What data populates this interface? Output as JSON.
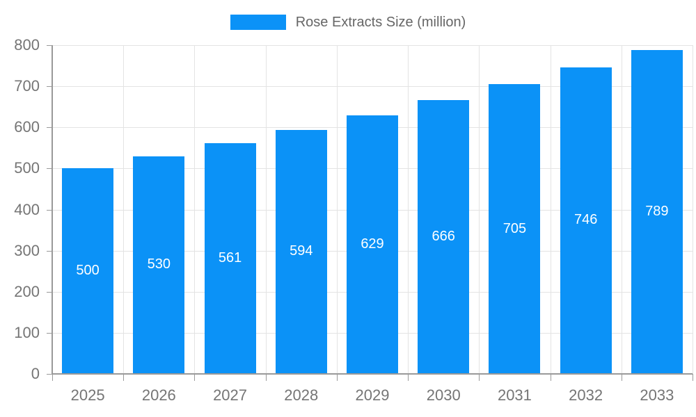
{
  "chart_data": {
    "type": "bar",
    "title": "Rose Extracts Size (million)",
    "legend": {
      "label": "Rose Extracts Size (million)",
      "position": "top-center"
    },
    "categories": [
      "2025",
      "2026",
      "2027",
      "2028",
      "2029",
      "2030",
      "2031",
      "2032",
      "2033"
    ],
    "values": [
      500,
      530,
      561,
      594,
      629,
      666,
      705,
      746,
      789
    ],
    "series": [
      {
        "name": "Rose Extracts Size (million)",
        "values": [
          500,
          530,
          561,
          594,
          629,
          666,
          705,
          746,
          789
        ]
      }
    ],
    "xlabel": "",
    "ylabel": "",
    "ylim": [
      0,
      800
    ],
    "ytick_step": 100,
    "ytick_labels": [
      "0",
      "100",
      "200",
      "300",
      "400",
      "500",
      "600",
      "700",
      "800"
    ],
    "grid": true,
    "value_labels_shown": true,
    "value_label_position": "center-of-bar"
  },
  "colors": {
    "bar": "#0b92f7",
    "value_label": "#ffffff",
    "axis": "#999999",
    "gridline": "#e3e3e3",
    "tick_label": "#757575",
    "legend_text": "#666666",
    "background": "#ffffff"
  }
}
